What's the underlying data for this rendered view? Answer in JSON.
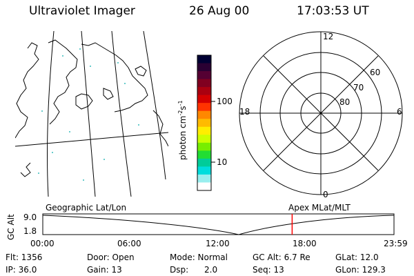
{
  "header": {
    "title": "Ultraviolet Imager",
    "date": "26 Aug 00",
    "time": "17:03:53 UT"
  },
  "colorbar": {
    "unit_label": "photon cm",
    "unit_exp1": "-2",
    "unit_s": "s",
    "unit_exp2": "-1",
    "ticks": [
      "100",
      "10"
    ],
    "colors": [
      "#000033",
      "#2a0033",
      "#550033",
      "#800020",
      "#aa0010",
      "#d40000",
      "#ff3300",
      "#ff8800",
      "#ffbb00",
      "#ffee00",
      "#ccff00",
      "#77ee00",
      "#22dd33",
      "#00cc99",
      "#00dddd",
      "#99eeee",
      "#ffffff"
    ]
  },
  "polar_plot": {
    "mlt_labels": {
      "top": "12",
      "left": "18",
      "right": "6",
      "bottom": "0"
    },
    "lat_labels": [
      "60",
      "70",
      "80"
    ]
  },
  "timeline": {
    "y_axis_label": "GC Alt",
    "y_ticks": [
      "9.0",
      "1.8"
    ],
    "left_caption": "Geographic Lat/Lon",
    "right_caption": "Apex MLat/MLT",
    "x_ticks": [
      "00:00",
      "06:00",
      "12:00",
      "18:00",
      "23:59"
    ],
    "current_time_fraction": 0.71,
    "marker_color": "#ff0000"
  },
  "status": {
    "flt": "Flt: 1356",
    "ip": "IP: 36.0",
    "door": "Door: Open",
    "gain": "Gain: 13",
    "mode": "Mode: Normal",
    "dsp_label": "Dsp:",
    "dsp_value": "2.0",
    "gc_alt": "GC Alt: 6.7 Re",
    "seq": "Seq: 13",
    "glat": "GLat: 12.0",
    "glon": "GLon: 129.3"
  }
}
